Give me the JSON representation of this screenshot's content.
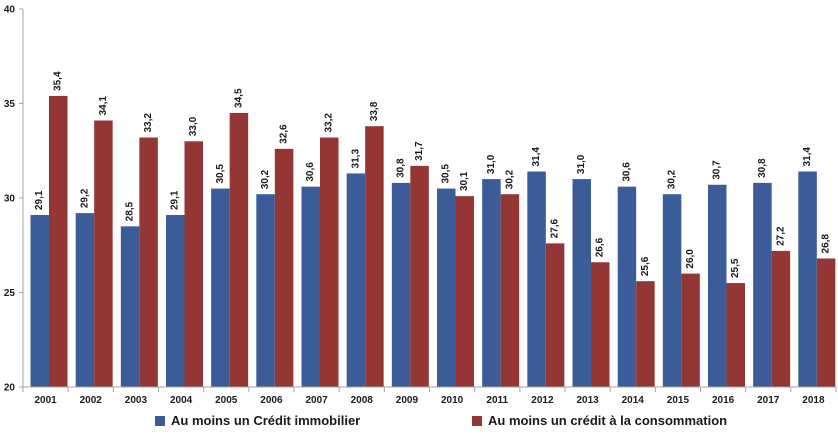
{
  "chart_data": {
    "type": "bar",
    "categories": [
      "2001",
      "2002",
      "2003",
      "2004",
      "2005",
      "2006",
      "2007",
      "2008",
      "2009",
      "2010",
      "2011",
      "2012",
      "2013",
      "2014",
      "2015",
      "2016",
      "2017",
      "2018"
    ],
    "series": [
      {
        "name": "Au moins un Crédit immobilier",
        "color": "#3b5c99",
        "values": [
          29.1,
          29.2,
          28.5,
          29.1,
          30.5,
          30.2,
          30.6,
          31.3,
          30.8,
          30.5,
          31.0,
          31.4,
          31.0,
          30.6,
          30.2,
          30.7,
          30.8,
          31.4
        ],
        "labels": [
          "29,1",
          "29,2",
          "28,5",
          "29,1",
          "30,5",
          "30,2",
          "30,6",
          "31,3",
          "30,8",
          "30,5",
          "31,0",
          "31,4",
          "31,0",
          "30,6",
          "30,2",
          "30,7",
          "30,8",
          "31,4"
        ]
      },
      {
        "name": "Au moins un crédit à la consommation",
        "color": "#943634",
        "values": [
          35.4,
          34.1,
          33.2,
          33.0,
          34.5,
          32.6,
          33.2,
          33.8,
          31.7,
          30.1,
          30.2,
          27.6,
          26.6,
          25.6,
          26.0,
          25.5,
          27.2,
          26.8
        ],
        "labels": [
          "35,4",
          "34,1",
          "33,2",
          "33,0",
          "34,5",
          "32,6",
          "33,2",
          "33,8",
          "31,7",
          "30,1",
          "30,2",
          "27,6",
          "26,6",
          "25,6",
          "26,0",
          "25,5",
          "27,2",
          "26,8"
        ]
      }
    ],
    "ylim": [
      20,
      40
    ],
    "yticks": [
      "20",
      "25",
      "30",
      "35",
      "40"
    ],
    "grid": false,
    "legend_position": "bottom"
  }
}
